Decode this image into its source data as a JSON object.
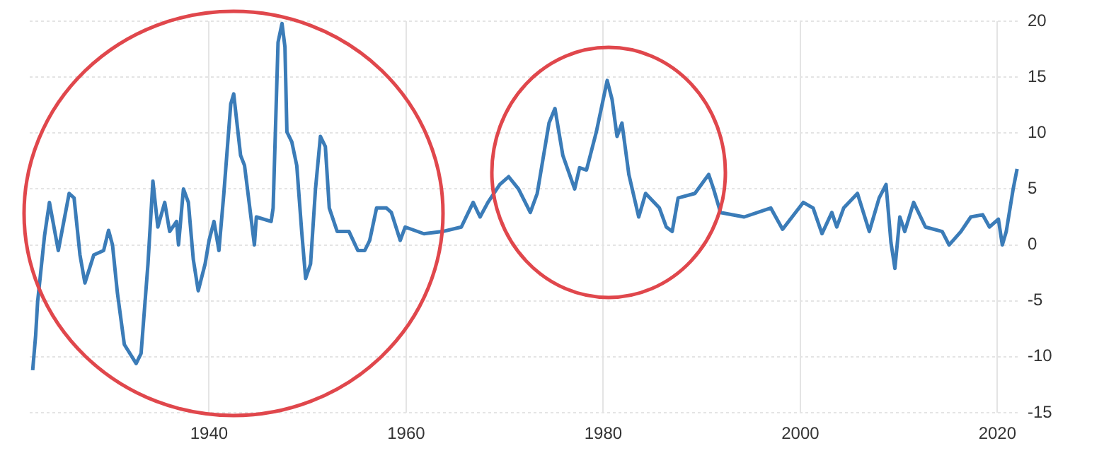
{
  "chart_data": {
    "type": "line",
    "x": [
      1922.1,
      1922.4,
      1922.6,
      1923.3,
      1923.8,
      1924.7,
      1925.8,
      1926.3,
      1926.9,
      1927.4,
      1928.3,
      1929.3,
      1929.8,
      1930.2,
      1930.7,
      1931.4,
      1932.6,
      1933.1,
      1933.8,
      1934.3,
      1934.8,
      1935.5,
      1936.0,
      1936.7,
      1936.9,
      1937.4,
      1937.9,
      1938.4,
      1938.9,
      1939.6,
      1940.0,
      1940.5,
      1941.0,
      1941.5,
      1942.2,
      1942.5,
      1943.2,
      1943.6,
      1944.6,
      1944.8,
      1946.3,
      1946.5,
      1947.0,
      1947.4,
      1947.7,
      1947.9,
      1948.4,
      1948.9,
      1949.4,
      1949.8,
      1950.3,
      1950.8,
      1951.3,
      1951.8,
      1952.2,
      1953.0,
      1954.2,
      1955.1,
      1955.8,
      1956.3,
      1957.0,
      1958.0,
      1958.5,
      1959.4,
      1959.9,
      1961.8,
      1963.7,
      1965.6,
      1966.8,
      1967.5,
      1968.3,
      1969.5,
      1970.4,
      1971.4,
      1972.6,
      1973.3,
      1974.5,
      1975.1,
      1975.9,
      1977.1,
      1977.6,
      1978.3,
      1979.3,
      1980.4,
      1980.9,
      1981.4,
      1981.9,
      1982.6,
      1983.6,
      1984.3,
      1985.7,
      1986.4,
      1987.0,
      1987.6,
      1989.3,
      1990.7,
      1991.2,
      1991.9,
      1994.3,
      1997.0,
      1998.2,
      2000.3,
      2001.3,
      2002.2,
      2003.2,
      2003.7,
      2004.4,
      2005.8,
      2007.0,
      2008.0,
      2008.7,
      2009.2,
      2009.6,
      2010.1,
      2010.6,
      2011.5,
      2012.7,
      2014.4,
      2015.1,
      2016.3,
      2017.3,
      2018.5,
      2019.2,
      2020.1,
      2020.5,
      2020.9,
      2021.6,
      2022.0
    ],
    "series": [
      {
        "color": "#3b7cb8",
        "values": [
          -11.2,
          -8.1,
          -5.1,
          0.8,
          3.8,
          -0.5,
          4.6,
          4.2,
          -0.9,
          -3.4,
          -0.9,
          -0.5,
          1.3,
          0,
          -4.3,
          -8.9,
          -10.6,
          -9.7,
          -1.7,
          5.7,
          1.6,
          3.8,
          1.2,
          2.1,
          0,
          5.0,
          3.8,
          -1.3,
          -4.1,
          -1.7,
          0.4,
          2.1,
          -0.5,
          4.6,
          12.6,
          13.5,
          8.0,
          7.1,
          0,
          2.5,
          2.1,
          3.3,
          18.1,
          19.8,
          17.7,
          10.1,
          9.2,
          7.1,
          1.2,
          -3.0,
          -1.7,
          5.0,
          9.7,
          8.8,
          3.3,
          1.2,
          1.2,
          -0.5,
          -0.5,
          0.4,
          3.3,
          3.3,
          2.9,
          0.4,
          1.6,
          1.0,
          1.2,
          1.6,
          3.8,
          2.5,
          3.8,
          5.4,
          6.1,
          5.0,
          2.9,
          4.6,
          10.9,
          12.2,
          8.0,
          5.0,
          6.9,
          6.7,
          10.1,
          14.7,
          13.0,
          9.7,
          10.9,
          6.3,
          2.5,
          4.6,
          3.3,
          1.6,
          1.2,
          4.2,
          4.6,
          6.3,
          5.0,
          2.9,
          2.5,
          3.3,
          1.4,
          3.8,
          3.3,
          1.0,
          2.9,
          1.6,
          3.3,
          4.6,
          1.2,
          4.2,
          5.4,
          0.2,
          -2.1,
          2.5,
          1.2,
          3.8,
          1.6,
          1.2,
          0,
          1.2,
          2.5,
          2.7,
          1.6,
          2.3,
          0,
          1.2,
          5.0,
          6.8
        ]
      }
    ],
    "xlim": [
      1921.8,
      2022.2
    ],
    "xticks": [
      1940,
      1960,
      1980,
      2000,
      2020
    ],
    "ylim": [
      -15,
      20
    ],
    "yticks": [
      -15,
      -10,
      -5,
      0,
      5,
      10,
      15,
      20
    ],
    "grid": true,
    "marker": "none",
    "line_style": "solid"
  }
}
